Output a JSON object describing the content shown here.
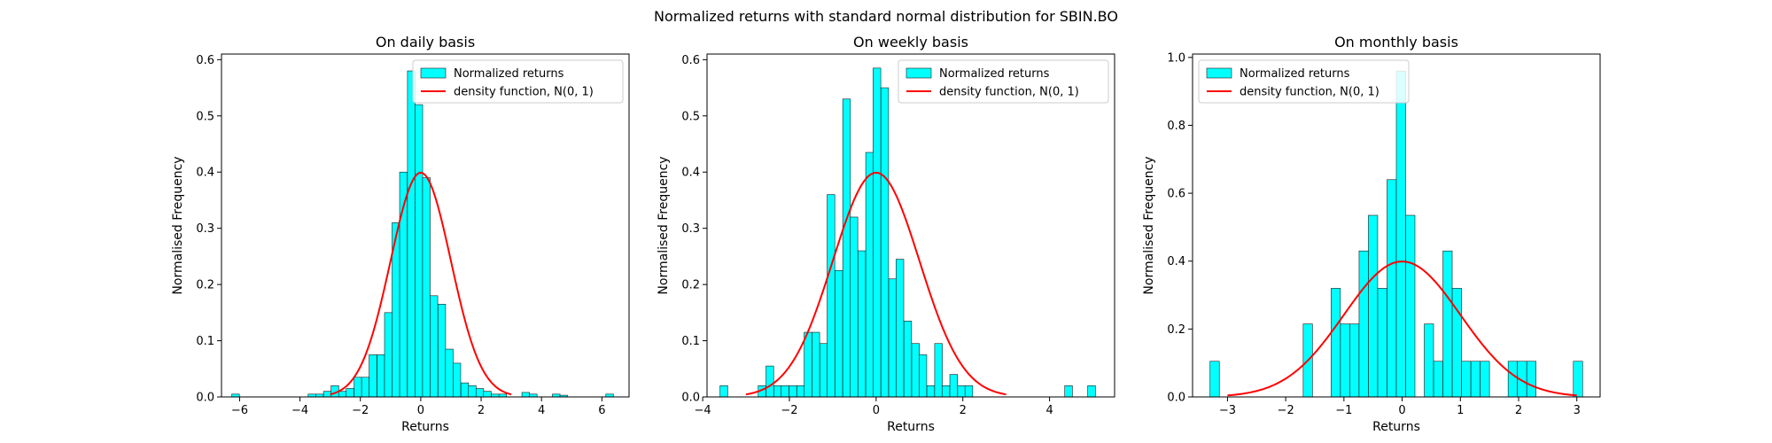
{
  "figure": {
    "suptitle": "Normalized returns with standard normal distribution for SBIN.BO"
  },
  "colors": {
    "bar_fill": "#00ffff",
    "bar_edge": "#1a1a1a",
    "curve": "#ff0000"
  },
  "chart_data": [
    {
      "type": "bar",
      "title": "On daily basis",
      "xlabel": "Returns",
      "ylabel": "Normalised Frequency",
      "xlim": [
        -6.6,
        6.9
      ],
      "ylim": [
        0,
        0.61
      ],
      "xticks": [
        -6,
        -4,
        -2,
        0,
        2,
        4,
        6
      ],
      "yticks": [
        0.0,
        0.1,
        0.2,
        0.3,
        0.4,
        0.5,
        0.6
      ],
      "legend_position": "top-right",
      "legend": [
        "Normalized returns",
        "density function, N(0, 1)"
      ],
      "bin_width": 0.253,
      "bins_left": [
        -6.26,
        -3.73,
        -3.48,
        -3.22,
        -2.97,
        -2.72,
        -2.47,
        -2.21,
        -1.96,
        -1.71,
        -1.45,
        -1.2,
        -0.95,
        -0.7,
        -0.44,
        -0.19,
        0.06,
        0.31,
        0.57,
        0.82,
        1.07,
        1.33,
        1.58,
        1.83,
        2.08,
        2.34,
        2.59,
        3.35,
        3.6,
        4.36,
        4.61,
        6.13
      ],
      "values": [
        0.005,
        0.005,
        0.005,
        0.01,
        0.02,
        0.01,
        0.015,
        0.035,
        0.035,
        0.075,
        0.075,
        0.15,
        0.31,
        0.4,
        0.58,
        0.52,
        0.39,
        0.18,
        0.165,
        0.085,
        0.06,
        0.025,
        0.02,
        0.015,
        0.01,
        0.005,
        0.005,
        0.008,
        0.005,
        0.005,
        0.003,
        0.005
      ],
      "curve": {
        "label": "density function, N(0, 1)",
        "x_range": [
          -3.0,
          3.0
        ],
        "mean": 0,
        "sd": 1
      }
    },
    {
      "type": "bar",
      "title": "On weekly basis",
      "xlabel": "Returns",
      "ylabel": "Normalised Frequency",
      "xlim": [
        -3.9,
        5.5
      ],
      "ylim": [
        0,
        0.61
      ],
      "xticks": [
        -4,
        -2,
        0,
        2,
        4
      ],
      "yticks": [
        0.0,
        0.1,
        0.2,
        0.3,
        0.4,
        0.5,
        0.6
      ],
      "legend_position": "top-right",
      "legend": [
        "Normalized returns",
        "density function, N(0, 1)"
      ],
      "bin_width": 0.177,
      "bins_left": [
        -3.6,
        -2.72,
        -2.54,
        -2.36,
        -2.19,
        -2.01,
        -1.83,
        -1.66,
        -1.48,
        -1.3,
        -1.13,
        -0.95,
        -0.77,
        -0.6,
        -0.42,
        -0.24,
        -0.07,
        0.11,
        0.29,
        0.46,
        0.64,
        0.82,
        0.99,
        1.17,
        1.35,
        1.52,
        1.7,
        1.88,
        2.05,
        4.35,
        4.88
      ],
      "values": [
        0.02,
        0.02,
        0.055,
        0.02,
        0.02,
        0.02,
        0.02,
        0.115,
        0.115,
        0.095,
        0.36,
        0.225,
        0.53,
        0.32,
        0.26,
        0.435,
        0.585,
        0.55,
        0.21,
        0.245,
        0.135,
        0.095,
        0.075,
        0.02,
        0.095,
        0.02,
        0.04,
        0.02,
        0.02,
        0.02,
        0.02
      ],
      "curve": {
        "label": "density function, N(0, 1)",
        "x_range": [
          -3.0,
          3.0
        ],
        "mean": 0,
        "sd": 1
      }
    },
    {
      "type": "bar",
      "title": "On monthly basis",
      "xlabel": "Returns",
      "ylabel": "Normalised Frequency",
      "xlim": [
        -3.6,
        3.4
      ],
      "ylim": [
        0,
        1.01
      ],
      "xticks": [
        -3,
        -2,
        -1,
        0,
        1,
        2,
        3
      ],
      "yticks": [
        0.0,
        0.2,
        0.4,
        0.6,
        0.8,
        1.0
      ],
      "legend_position": "top-left",
      "legend": [
        "Normalized returns",
        "density function, N(0, 1)"
      ],
      "bin_width": 0.1595,
      "bins_left": [
        -3.3,
        -1.7,
        -1.22,
        -1.06,
        -0.9,
        -0.74,
        -0.58,
        -0.42,
        -0.26,
        -0.1,
        0.06,
        0.38,
        0.54,
        0.7,
        0.86,
        1.02,
        1.18,
        1.34,
        1.82,
        1.98,
        2.14,
        2.94
      ],
      "values": [
        0.105,
        0.215,
        0.32,
        0.215,
        0.215,
        0.43,
        0.535,
        0.32,
        0.64,
        0.96,
        0.535,
        0.215,
        0.105,
        0.43,
        0.32,
        0.105,
        0.105,
        0.105,
        0.105,
        0.105,
        0.105,
        0.105
      ],
      "curve": {
        "label": "density function, N(0, 1)",
        "x_range": [
          -3.0,
          3.0
        ],
        "mean": 0,
        "sd": 1
      }
    }
  ]
}
